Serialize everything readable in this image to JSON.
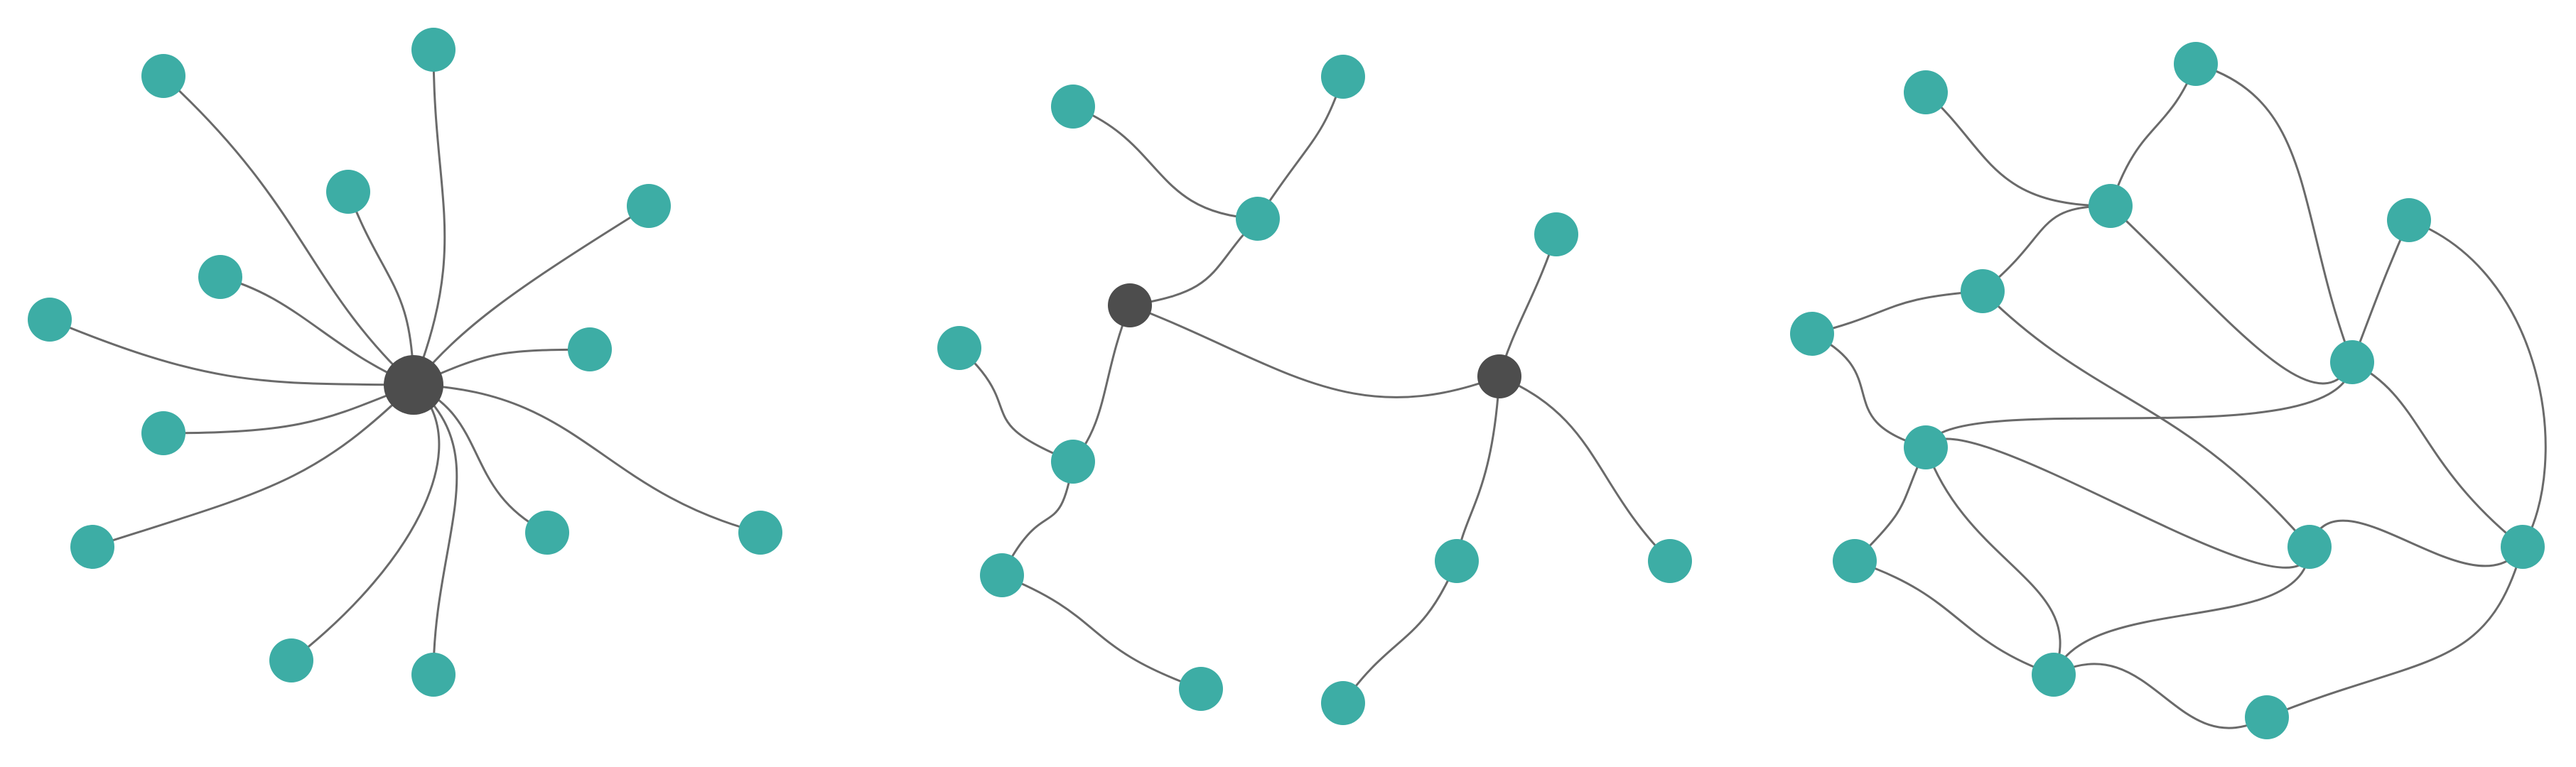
{
  "diagram": {
    "panels": [
      "star-network",
      "tree-network",
      "mesh-network"
    ]
  },
  "colors": {
    "node": "#3dada5",
    "hub": "#4d4d4d",
    "edge": "#6a6a6a",
    "background": "#ffffff"
  }
}
